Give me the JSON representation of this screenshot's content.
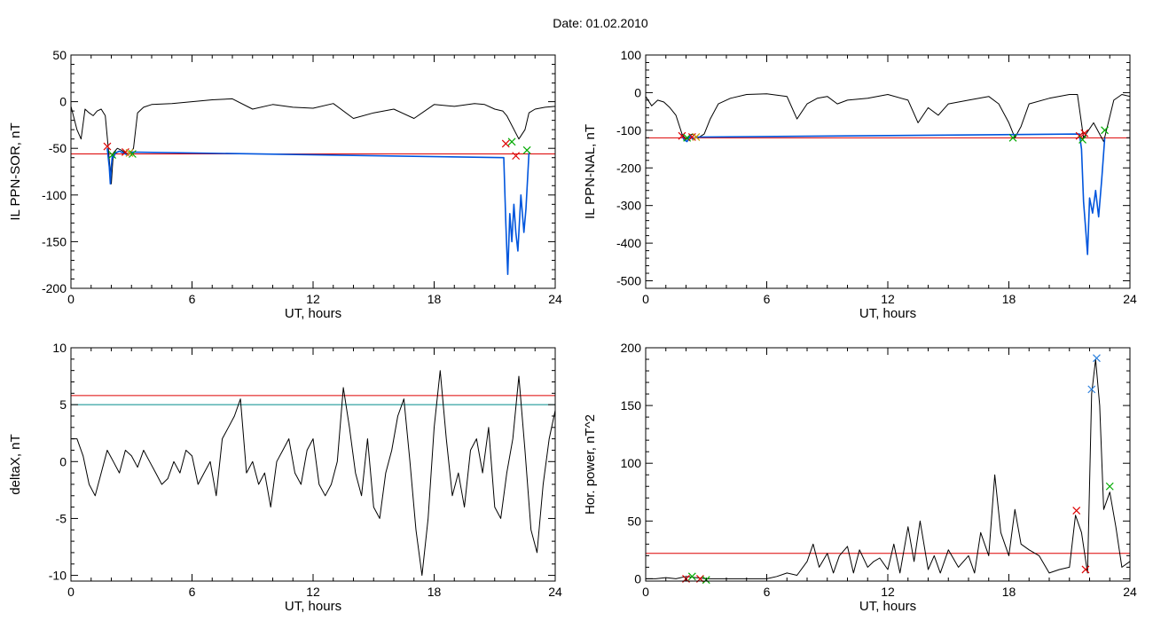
{
  "figure": {
    "title": "Date:  01.02.2010"
  },
  "colors": {
    "trace": "#000000",
    "storm": "#0055dd",
    "threshold_red": "#dd0000",
    "threshold_teal": "#008b8b",
    "mark_red": "#dd0000",
    "mark_green": "#00aa00",
    "mark_blue": "#2a7fdd",
    "mark_orange": "#cc9900"
  },
  "chart_data": [
    {
      "id": "ppn-sor",
      "type": "line",
      "xlabel": "UT, hours",
      "ylabel": "IL PPN-SOR, nT",
      "xlim": [
        0,
        24
      ],
      "ylim": [
        -200,
        50
      ],
      "xticks": [
        0,
        6,
        12,
        18,
        24
      ],
      "yticks": [
        -200,
        -150,
        -100,
        -50,
        0,
        50
      ],
      "thresholds": [
        {
          "y": -56,
          "color": "threshold_red"
        }
      ],
      "series": [
        {
          "style": "trace",
          "x": [
            0,
            0.3,
            0.5,
            0.7,
            0.9,
            1.1,
            1.3,
            1.5,
            1.7,
            1.85,
            2.0,
            2.1,
            2.3,
            2.5,
            2.7,
            2.9,
            3.1,
            3.3,
            3.6,
            4,
            5,
            6,
            7,
            8,
            9,
            10,
            11,
            12,
            13,
            14,
            15,
            16,
            17,
            18,
            19,
            20,
            20.5,
            21,
            21.4,
            21.6,
            22.2,
            22.5,
            22.7,
            23.0,
            23.5,
            24
          ],
          "y": [
            -5,
            -30,
            -40,
            -8,
            -12,
            -15,
            -10,
            -8,
            -15,
            -50,
            -88,
            -55,
            -50,
            -52,
            -55,
            -56,
            -50,
            -12,
            -6,
            -3,
            -2,
            0,
            2,
            3,
            -8,
            -3,
            -6,
            -7,
            -2,
            -18,
            -12,
            -8,
            -18,
            -3,
            -5,
            -2,
            -3,
            -8,
            -10,
            -15,
            -40,
            -30,
            -12,
            -8,
            -6,
            -5
          ]
        },
        {
          "style": "storm",
          "x": [
            1.8,
            1.9,
            1.95,
            2.0,
            2.05,
            2.1,
            2.2,
            2.4,
            2.6,
            2.8,
            3.0,
            21.45,
            21.55,
            21.65,
            21.75,
            21.85,
            21.95,
            22.05,
            22.15,
            22.3,
            22.45,
            22.55,
            22.7
          ],
          "y": [
            -50,
            -70,
            -88,
            -70,
            -58,
            -60,
            -55,
            -53,
            -55,
            -57,
            -54,
            -60,
            -130,
            -185,
            -120,
            -150,
            -110,
            -140,
            -160,
            -100,
            -140,
            -115,
            -55
          ]
        }
      ],
      "markers": [
        {
          "x": 1.8,
          "y": -48,
          "color": "mark_red"
        },
        {
          "x": 2.05,
          "y": -57,
          "color": "mark_green"
        },
        {
          "x": 2.7,
          "y": -54,
          "color": "mark_red"
        },
        {
          "x": 2.9,
          "y": -55,
          "color": "mark_orange"
        },
        {
          "x": 3.05,
          "y": -56,
          "color": "mark_green"
        },
        {
          "x": 21.55,
          "y": -45,
          "color": "mark_red"
        },
        {
          "x": 21.85,
          "y": -43,
          "color": "mark_green"
        },
        {
          "x": 22.05,
          "y": -58,
          "color": "mark_red"
        },
        {
          "x": 22.6,
          "y": -52,
          "color": "mark_green"
        }
      ]
    },
    {
      "id": "ppn-nal",
      "type": "line",
      "xlabel": "UT, hours",
      "ylabel": "IL PPN-NAL, nT",
      "xlim": [
        0,
        24
      ],
      "ylim": [
        -520,
        100
      ],
      "xticks": [
        0,
        6,
        12,
        18,
        24
      ],
      "yticks": [
        -500,
        -400,
        -300,
        -200,
        -100,
        0,
        100
      ],
      "thresholds": [
        {
          "y": -120,
          "color": "threshold_red"
        }
      ],
      "series": [
        {
          "style": "trace",
          "x": [
            0,
            0.3,
            0.6,
            0.9,
            1.2,
            1.5,
            1.8,
            2.0,
            2.3,
            2.6,
            2.9,
            3.2,
            3.6,
            4.2,
            5,
            6,
            7,
            7.5,
            8,
            8.5,
            9,
            9.5,
            10,
            11,
            12,
            13,
            13.5,
            14,
            14.5,
            15,
            16,
            17,
            17.5,
            18,
            18.3,
            18.6,
            19,
            20,
            21,
            21.4,
            21.7,
            22.2,
            22.7,
            23.2,
            23.6,
            24
          ],
          "y": [
            -10,
            -35,
            -20,
            -25,
            -40,
            -60,
            -110,
            -125,
            -110,
            -120,
            -110,
            -70,
            -30,
            -15,
            -5,
            -3,
            -10,
            -70,
            -30,
            -15,
            -10,
            -30,
            -20,
            -15,
            -5,
            -20,
            -80,
            -40,
            -60,
            -30,
            -20,
            -10,
            -30,
            -80,
            -120,
            -90,
            -30,
            -15,
            -5,
            -5,
            -120,
            -80,
            -130,
            -20,
            -5,
            -10
          ]
        },
        {
          "style": "storm",
          "x": [
            1.75,
            1.9,
            2.05,
            2.2,
            2.35,
            2.5,
            21.5,
            21.6,
            21.7,
            21.8,
            21.9,
            22.0,
            22.15,
            22.3,
            22.45,
            22.6,
            22.75
          ],
          "y": [
            -110,
            -125,
            -130,
            -115,
            -125,
            -118,
            -110,
            -150,
            -290,
            -360,
            -430,
            -280,
            -320,
            -260,
            -330,
            -230,
            -120
          ]
        }
      ],
      "markers": [
        {
          "x": 1.8,
          "y": -115,
          "color": "mark_red"
        },
        {
          "x": 2.05,
          "y": -120,
          "color": "mark_green"
        },
        {
          "x": 2.3,
          "y": -118,
          "color": "mark_red"
        },
        {
          "x": 2.5,
          "y": -118,
          "color": "mark_orange"
        },
        {
          "x": 18.2,
          "y": -120,
          "color": "mark_green"
        },
        {
          "x": 21.5,
          "y": -115,
          "color": "mark_red"
        },
        {
          "x": 21.65,
          "y": -125,
          "color": "mark_green"
        },
        {
          "x": 21.75,
          "y": -108,
          "color": "mark_red"
        },
        {
          "x": 22.75,
          "y": -100,
          "color": "mark_green"
        }
      ]
    },
    {
      "id": "deltax",
      "type": "line",
      "xlabel": "UT, hours",
      "ylabel": "deltaX, nT",
      "xlim": [
        0,
        24
      ],
      "ylim": [
        -10.5,
        10
      ],
      "xticks": [
        0,
        6,
        12,
        18,
        24
      ],
      "yticks": [
        -10,
        -5,
        0,
        5,
        10
      ],
      "thresholds": [
        {
          "y": 5.8,
          "color": "threshold_red"
        },
        {
          "y": 5.0,
          "color": "threshold_teal"
        }
      ],
      "series": [
        {
          "style": "trace",
          "x": [
            0,
            0.3,
            0.6,
            0.9,
            1.2,
            1.5,
            1.8,
            2.1,
            2.4,
            2.7,
            3.0,
            3.3,
            3.6,
            3.9,
            4.2,
            4.5,
            4.8,
            5.1,
            5.4,
            5.7,
            6.0,
            6.3,
            6.6,
            6.9,
            7.2,
            7.5,
            7.8,
            8.1,
            8.4,
            8.7,
            9.0,
            9.3,
            9.6,
            9.9,
            10.2,
            10.5,
            10.8,
            11.1,
            11.4,
            11.7,
            12.0,
            12.3,
            12.6,
            12.9,
            13.2,
            13.5,
            13.8,
            14.1,
            14.4,
            14.7,
            15.0,
            15.3,
            15.6,
            15.9,
            16.2,
            16.5,
            16.8,
            17.1,
            17.4,
            17.7,
            18.0,
            18.3,
            18.6,
            18.9,
            19.2,
            19.5,
            19.8,
            20.1,
            20.4,
            20.7,
            21.0,
            21.3,
            21.6,
            21.9,
            22.2,
            22.5,
            22.8,
            23.1,
            23.4,
            23.7,
            24.0
          ],
          "y": [
            2,
            2,
            0.5,
            -2,
            -3,
            -1,
            1,
            0,
            -1,
            1,
            0.5,
            -0.5,
            1,
            0,
            -1,
            -2,
            -1.5,
            0,
            -1,
            1,
            0.5,
            -2,
            -1,
            0,
            -3,
            2,
            3,
            4,
            5.5,
            -1,
            0,
            -2,
            -1,
            -4,
            0,
            1,
            2,
            -1,
            -2,
            1,
            2,
            -2,
            -3,
            -2,
            0,
            6.5,
            3,
            -1,
            -3,
            2,
            -4,
            -5,
            -1,
            1,
            4,
            5.5,
            0,
            -6,
            -10,
            -5,
            3,
            8,
            2,
            -3,
            -1,
            -4,
            1,
            2,
            -1,
            3,
            -4,
            -5,
            -1,
            2,
            7.5,
            1,
            -6,
            -8,
            -2,
            2,
            4.5
          ]
        }
      ],
      "markers": []
    },
    {
      "id": "hor-power",
      "type": "line",
      "xlabel": "UT, hours",
      "ylabel": "Hor. power, nT^2",
      "xlim": [
        0,
        24
      ],
      "ylim": [
        -2,
        200
      ],
      "xticks": [
        0,
        6,
        12,
        18,
        24
      ],
      "yticks": [
        0,
        50,
        100,
        150,
        200
      ],
      "thresholds": [
        {
          "y": 22,
          "color": "threshold_red"
        }
      ],
      "series": [
        {
          "style": "trace",
          "x": [
            0,
            0.5,
            1.0,
            1.5,
            2.0,
            2.5,
            3.0,
            3.5,
            4,
            4.5,
            5,
            5.5,
            6,
            6.5,
            7,
            7.5,
            8,
            8.3,
            8.6,
            9,
            9.3,
            9.6,
            10,
            10.3,
            10.6,
            11,
            11.3,
            11.6,
            12,
            12.3,
            12.6,
            13,
            13.3,
            13.6,
            14,
            14.3,
            14.6,
            15,
            15.5,
            16,
            16.3,
            16.6,
            17,
            17.3,
            17.6,
            18,
            18.3,
            18.6,
            19,
            19.5,
            20,
            20.5,
            21,
            21.3,
            21.6,
            21.9,
            22.1,
            22.3,
            22.5,
            22.7,
            23,
            23.3,
            23.6,
            24
          ],
          "y": [
            0,
            0,
            1,
            0,
            2,
            1,
            0,
            0,
            0,
            0,
            0,
            0,
            0,
            2,
            5,
            3,
            15,
            30,
            10,
            22,
            5,
            20,
            28,
            5,
            25,
            10,
            15,
            18,
            8,
            30,
            5,
            45,
            15,
            50,
            8,
            20,
            5,
            25,
            10,
            20,
            5,
            40,
            20,
            90,
            40,
            20,
            60,
            30,
            25,
            20,
            5,
            8,
            10,
            55,
            40,
            5,
            160,
            190,
            150,
            60,
            75,
            45,
            10,
            15
          ]
        }
      ],
      "markers": [
        {
          "x": 2.0,
          "y": 0,
          "color": "mark_red"
        },
        {
          "x": 2.3,
          "y": 2,
          "color": "mark_green"
        },
        {
          "x": 2.7,
          "y": 0,
          "color": "mark_red"
        },
        {
          "x": 3.0,
          "y": -1,
          "color": "mark_green"
        },
        {
          "x": 21.35,
          "y": 59,
          "color": "mark_red"
        },
        {
          "x": 21.8,
          "y": 8,
          "color": "mark_red"
        },
        {
          "x": 22.1,
          "y": 164,
          "color": "mark_blue"
        },
        {
          "x": 22.35,
          "y": 191,
          "color": "mark_blue"
        },
        {
          "x": 23.0,
          "y": 80,
          "color": "mark_green"
        }
      ]
    }
  ]
}
